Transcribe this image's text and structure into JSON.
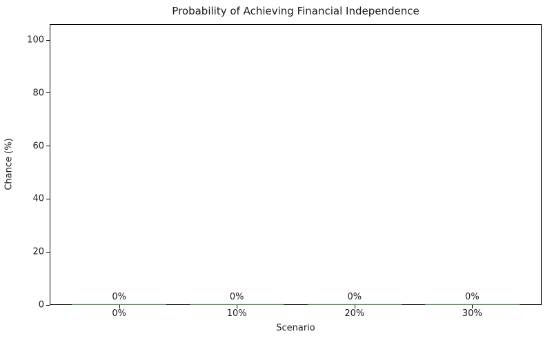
{
  "chart_data": {
    "type": "bar",
    "title": "Probability of Achieving Financial Independence",
    "xlabel": "Scenario",
    "ylabel": "Chance (%)",
    "categories": [
      "0%",
      "10%",
      "20%",
      "30%"
    ],
    "values": [
      0,
      0,
      0,
      0
    ],
    "bar_labels": [
      "0%",
      "0%",
      "0%",
      "0%"
    ],
    "yticks": [
      0,
      20,
      40,
      60,
      80,
      100
    ],
    "ylim": [
      0,
      106
    ],
    "xlim": [
      -0.59,
      3.59
    ],
    "bar_width": 0.8,
    "grid": false,
    "legend": null,
    "bar_color": "#90ee90",
    "text_color": "#1a1a1a",
    "spine_color": "#000000",
    "background_color": "#ffffff"
  }
}
